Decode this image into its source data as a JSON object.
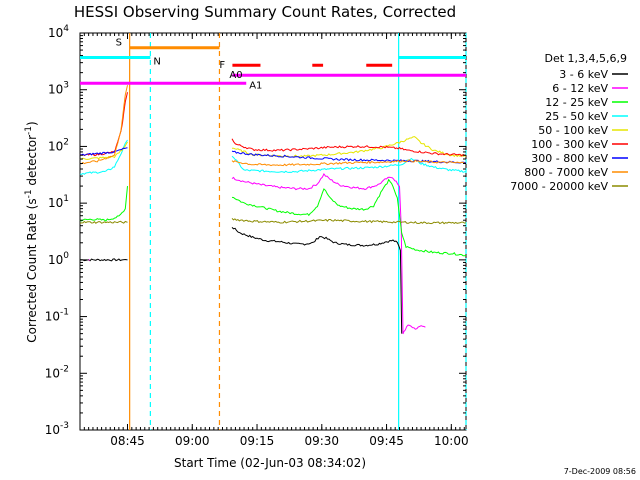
{
  "chart_data": {
    "type": "line",
    "title": "HESSI Observing Summary Count Rates, Corrected",
    "xlabel": "Start Time (02-Jun-03 08:34:02)",
    "ylabel_main": "Corrected Count Rate (s",
    "ylabel_sup1": "-1",
    "ylabel_mid": " detector",
    "ylabel_sup2": "-1",
    "ylabel_end": ")",
    "y_scale": "log",
    "ylim": [
      0.001,
      10000
    ],
    "xlim_minutes": [
      0,
      89.4
    ],
    "x_ticks": [
      {
        "label": "08:45",
        "minute": 11
      },
      {
        "label": "09:00",
        "minute": 26
      },
      {
        "label": "09:15",
        "minute": 41
      },
      {
        "label": "09:30",
        "minute": 56
      },
      {
        "label": "09:45",
        "minute": 71
      },
      {
        "label": "10:00",
        "minute": 86
      }
    ],
    "y_ticks": [
      {
        "base": "10",
        "exp": "-3",
        "value": 0.001
      },
      {
        "base": "10",
        "exp": "-2",
        "value": 0.01
      },
      {
        "base": "10",
        "exp": "-1",
        "value": 0.1
      },
      {
        "base": "10",
        "exp": "0",
        "value": 1
      },
      {
        "base": "10",
        "exp": "1",
        "value": 10
      },
      {
        "base": "10",
        "exp": "2",
        "value": 100
      },
      {
        "base": "10",
        "exp": "3",
        "value": 1000
      },
      {
        "base": "10",
        "exp": "4",
        "value": 10000
      }
    ],
    "legend_placement": "right",
    "legend_header": "Det 1,3,4,5,6,9",
    "series": [
      {
        "name": "3 - 6 keV",
        "color": "#000000",
        "pts": [
          [
            0,
            1.0
          ],
          [
            0.5,
            1.0
          ],
          [
            1,
            1.0
          ],
          [
            2,
            1.0
          ],
          [
            4,
            1.0
          ],
          [
            6,
            1.0
          ],
          [
            8,
            1.0
          ],
          [
            9,
            1.0
          ],
          [
            10,
            1.0
          ],
          [
            10.5,
            1.0
          ],
          [
            11,
            1.0
          ],
          [
            35.2,
            3.8
          ],
          [
            37,
            3.0
          ],
          [
            40,
            2.5
          ],
          [
            43,
            2.2
          ],
          [
            46,
            2.1
          ],
          [
            48,
            2.0
          ],
          [
            50,
            1.9
          ],
          [
            52,
            1.9
          ],
          [
            54,
            2.0
          ],
          [
            55.5,
            2.6
          ],
          [
            57,
            2.4
          ],
          [
            59,
            2.0
          ],
          [
            62,
            1.85
          ],
          [
            66,
            1.8
          ],
          [
            69,
            1.9
          ],
          [
            71,
            2.1
          ],
          [
            72.5,
            2.2
          ],
          [
            73.5,
            2.0
          ],
          [
            74.2,
            1.5
          ],
          [
            74.5,
            0.05
          ]
        ]
      },
      {
        "name": "6 - 12 keV",
        "color": "#ff00ff",
        "pts": [
          [
            2,
            1.0
          ],
          [
            2.3,
            1.0
          ],
          [
            35.2,
            28
          ],
          [
            38,
            24
          ],
          [
            42,
            21
          ],
          [
            46,
            19
          ],
          [
            50,
            18
          ],
          [
            53,
            18
          ],
          [
            55,
            22
          ],
          [
            56.5,
            32
          ],
          [
            58,
            26
          ],
          [
            60,
            21
          ],
          [
            63,
            19
          ],
          [
            66,
            18
          ],
          [
            69,
            21
          ],
          [
            71,
            27
          ],
          [
            72.3,
            29
          ],
          [
            73.2,
            24
          ],
          [
            74,
            19
          ],
          [
            74.4,
            4
          ],
          [
            74.8,
            0.05
          ],
          [
            75,
            0.055
          ],
          [
            76,
            0.07
          ],
          [
            77,
            0.065
          ],
          [
            78,
            0.06
          ],
          [
            79,
            0.07
          ],
          [
            80,
            0.065
          ]
        ]
      },
      {
        "name": "12 - 25 keV",
        "color": "#00ff00",
        "pts": [
          [
            0,
            5.0
          ],
          [
            3,
            5.2
          ],
          [
            6,
            5.0
          ],
          [
            9,
            5.8
          ],
          [
            10.5,
            8
          ],
          [
            11,
            20
          ],
          [
            35.2,
            13
          ],
          [
            38,
            10
          ],
          [
            42,
            8.5
          ],
          [
            46,
            7.2
          ],
          [
            50,
            6.5
          ],
          [
            53,
            6.3
          ],
          [
            55,
            9
          ],
          [
            56.5,
            18
          ],
          [
            58,
            12
          ],
          [
            60,
            9
          ],
          [
            63,
            8
          ],
          [
            66,
            7.8
          ],
          [
            68,
            9
          ],
          [
            70,
            17
          ],
          [
            71.5,
            25
          ],
          [
            72.5,
            20
          ],
          [
            73.5,
            12
          ],
          [
            74.5,
            3
          ],
          [
            75.5,
            1.7
          ],
          [
            78,
            1.5
          ],
          [
            82,
            1.35
          ],
          [
            86,
            1.3
          ],
          [
            89.4,
            1.2
          ]
        ]
      },
      {
        "name": "25 - 50 keV",
        "color": "#00ffff",
        "pts": [
          [
            0,
            33
          ],
          [
            2,
            34
          ],
          [
            4,
            35
          ],
          [
            6,
            36
          ],
          [
            8,
            44
          ],
          [
            9.5,
            75
          ],
          [
            10.5,
            110
          ],
          [
            11,
            130
          ],
          [
            35.2,
            70
          ],
          [
            38,
            38
          ],
          [
            42,
            37
          ],
          [
            46,
            36
          ],
          [
            50,
            36
          ],
          [
            54,
            38
          ],
          [
            58,
            40
          ],
          [
            62,
            41
          ],
          [
            66,
            42
          ],
          [
            70,
            44
          ],
          [
            72,
            46
          ],
          [
            74,
            48
          ],
          [
            75,
            50
          ],
          [
            76,
            60
          ],
          [
            77.5,
            58
          ],
          [
            79,
            50
          ],
          [
            82,
            43
          ],
          [
            86,
            38
          ],
          [
            89.4,
            36
          ]
        ]
      },
      {
        "name": "50 - 100 keV",
        "color": "#e6e600",
        "pts": [
          [
            0,
            60
          ],
          [
            4,
            62
          ],
          [
            8,
            66
          ],
          [
            10,
            90
          ],
          [
            11,
            120
          ],
          [
            35.2,
            95
          ],
          [
            40,
            72
          ],
          [
            46,
            68
          ],
          [
            52,
            67
          ],
          [
            58,
            72
          ],
          [
            64,
            80
          ],
          [
            70,
            95
          ],
          [
            74,
            118
          ],
          [
            76,
            135
          ],
          [
            77.5,
            145
          ],
          [
            79,
            115
          ],
          [
            82,
            85
          ],
          [
            86,
            70
          ],
          [
            89.4,
            67
          ]
        ]
      },
      {
        "name": "100 - 300 keV",
        "color": "#ff0000",
        "pts": [
          [
            0,
            70
          ],
          [
            4,
            72
          ],
          [
            8,
            80
          ],
          [
            9.5,
            180
          ],
          [
            10.5,
            600
          ],
          [
            11,
            900
          ],
          [
            35.2,
            140
          ],
          [
            36,
            110
          ],
          [
            40,
            88
          ],
          [
            46,
            85
          ],
          [
            52,
            90
          ],
          [
            58,
            97
          ],
          [
            64,
            100
          ],
          [
            70,
            98
          ],
          [
            74,
            92
          ],
          [
            76,
            85
          ],
          [
            79,
            80
          ],
          [
            82,
            75
          ],
          [
            86,
            72
          ],
          [
            89.4,
            70
          ]
        ]
      },
      {
        "name": "300 - 800 keV",
        "color": "#0000ff",
        "pts": [
          [
            0,
            70
          ],
          [
            4,
            75
          ],
          [
            8,
            80
          ],
          [
            10,
            90
          ],
          [
            11,
            95
          ],
          [
            35.2,
            80
          ],
          [
            40,
            72
          ],
          [
            46,
            68
          ],
          [
            52,
            64
          ],
          [
            58,
            60
          ],
          [
            64,
            58
          ],
          [
            70,
            57
          ],
          [
            74,
            56
          ],
          [
            76,
            56
          ],
          [
            79,
            55
          ],
          [
            82,
            54
          ],
          [
            86,
            53
          ],
          [
            89.4,
            52
          ]
        ]
      },
      {
        "name": "800 - 7000 keV",
        "color": "#ff8c00",
        "pts": [
          [
            0,
            50
          ],
          [
            4,
            55
          ],
          [
            8,
            70
          ],
          [
            9.5,
            200
          ],
          [
            10.5,
            800
          ],
          [
            11,
            1200
          ],
          [
            35.2,
            55
          ],
          [
            40,
            48
          ],
          [
            46,
            47
          ],
          [
            52,
            48
          ],
          [
            58,
            50
          ],
          [
            64,
            52
          ],
          [
            70,
            53
          ],
          [
            74,
            55
          ],
          [
            76,
            56
          ],
          [
            79,
            54
          ],
          [
            82,
            53
          ],
          [
            86,
            52
          ],
          [
            89.4,
            51
          ]
        ]
      },
      {
        "name": "7000 - 20000 keV",
        "color": "#8b8b00",
        "pts": [
          [
            0,
            4.6
          ],
          [
            3,
            4.6
          ],
          [
            6,
            4.6
          ],
          [
            9,
            4.6
          ],
          [
            10.5,
            4.6
          ],
          [
            11,
            4.6
          ],
          [
            35.2,
            5.2
          ],
          [
            40,
            4.8
          ],
          [
            46,
            4.6
          ],
          [
            52,
            4.8
          ],
          [
            58,
            5.0
          ],
          [
            64,
            4.8
          ],
          [
            70,
            4.7
          ],
          [
            74,
            4.6
          ],
          [
            76,
            4.6
          ],
          [
            79,
            4.5
          ],
          [
            82,
            4.5
          ],
          [
            86,
            4.5
          ],
          [
            89.4,
            4.5
          ]
        ]
      }
    ],
    "markers": [
      {
        "kind": "vline",
        "minute": 11.5,
        "color": "#ff8c00",
        "dash": "solid"
      },
      {
        "kind": "vline",
        "minute": 16.3,
        "color": "#00ffff",
        "dash": "dash"
      },
      {
        "kind": "vline",
        "minute": 32.3,
        "color": "#ff8c00",
        "dash": "dash"
      },
      {
        "kind": "vline",
        "minute": 73.8,
        "color": "#00ffff",
        "dash": "solid"
      },
      {
        "kind": "vline",
        "minute": 89.4,
        "color": "#00ffff",
        "dash": "dash"
      }
    ],
    "bars": [
      {
        "label": "S",
        "color": "#ff8c00",
        "from": 11.5,
        "to": 32.3,
        "level": 5500
      },
      {
        "label": "N",
        "color": "#00ffff",
        "from": 0,
        "to": 16.3,
        "level": 3700
      },
      {
        "label": "F",
        "color": "#ff0000",
        "from": 35.3,
        "to": 41.8,
        "level": 2700
      },
      {
        "label": "",
        "color": "#ff0000",
        "from": 53.8,
        "to": 56.3,
        "level": 2700
      },
      {
        "label": "",
        "color": "#ff0000",
        "from": 66.3,
        "to": 72.3,
        "level": 2700
      },
      {
        "label": "A0",
        "color": "#ff00ff",
        "from": 35.3,
        "to": 89.4,
        "level": 1800
      },
      {
        "label": "A1",
        "color": "#ff00ff",
        "from": 0,
        "to": 38.5,
        "level": 1300
      },
      {
        "label": "",
        "color": "#00ffff",
        "from": 73.8,
        "to": 89.4,
        "level": 3700
      }
    ],
    "footer": "7-Dec-2009 08:56"
  }
}
